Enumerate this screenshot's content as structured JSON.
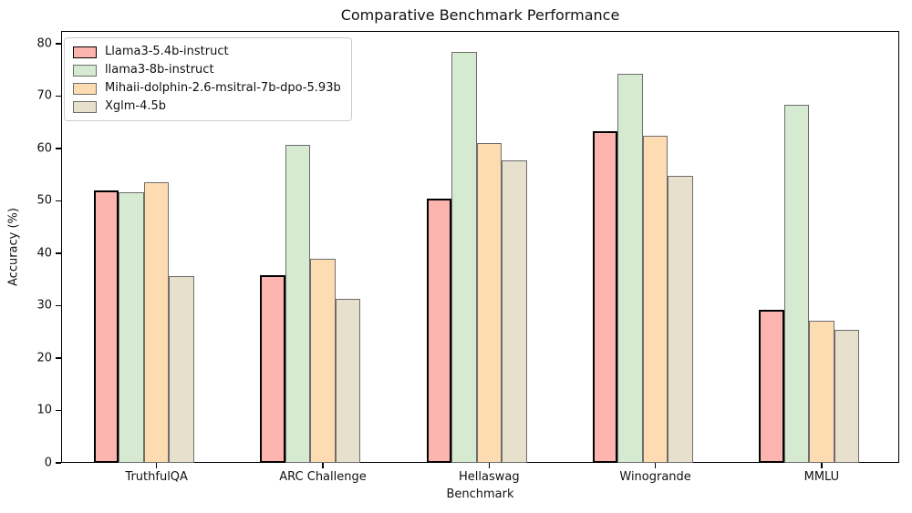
{
  "title": "Comparative Benchmark Performance",
  "xlabel": "Benchmark",
  "ylabel": "Accuracy (%)",
  "chart_data": {
    "type": "bar",
    "title": "Comparative Benchmark Performance",
    "xlabel": "Benchmark",
    "ylabel": "Accuracy (%)",
    "categories": [
      "TruthfulQA",
      "ARC Challenge",
      "Hellaswag",
      "Winogrande",
      "MMLU"
    ],
    "series": [
      {
        "name": "Llama3-5.4b-instruct",
        "color": "#fbb4ae",
        "edge_color": "#000000",
        "edge_width": 2.6,
        "values": [
          51.9,
          35.9,
          50.4,
          63.2,
          29.2
        ]
      },
      {
        "name": "llama3-8b-instruct",
        "color": "#d5ead0",
        "edge_color": "#6e6e6e",
        "edge_width": 1.2,
        "values": [
          51.6,
          60.7,
          78.4,
          74.3,
          68.3
        ]
      },
      {
        "name": "Mihaii-dolphin-2.6-msitral-7b-dpo-5.93b",
        "color": "#fedcb2",
        "edge_color": "#6e6e6e",
        "edge_width": 1.2,
        "values": [
          53.5,
          38.9,
          61.0,
          62.4,
          27.1
        ]
      },
      {
        "name": "Xglm-4.5b",
        "color": "#e7e0cd",
        "edge_color": "#6e6e6e",
        "edge_width": 1.2,
        "values": [
          35.7,
          31.3,
          57.8,
          54.8,
          25.3
        ]
      }
    ],
    "ylim": [
      0,
      82.4
    ],
    "yticks": [
      0,
      10,
      20,
      30,
      40,
      50,
      60,
      70,
      80
    ],
    "grid": false,
    "legend_position": "upper left",
    "background": "#ffffff"
  }
}
